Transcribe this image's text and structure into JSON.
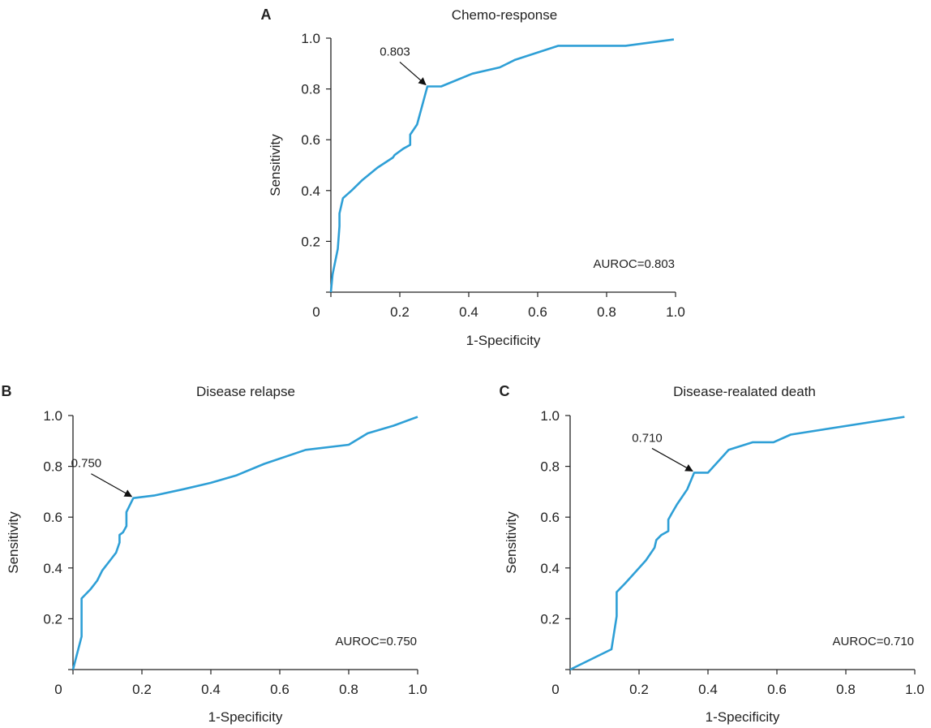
{
  "colors": {
    "curve": "#2e9fd6",
    "axis": "#222222",
    "arrow": "#111111"
  },
  "chart_data": [
    {
      "type": "line",
      "panel": "A",
      "title": "Chemo-response",
      "xlabel": "1-Specificity",
      "ylabel": "Sensitivity",
      "xlim": [
        0,
        1
      ],
      "ylim": [
        0,
        1
      ],
      "xticks": [
        "0",
        "0.2",
        "0.4",
        "0.6",
        "0.8",
        "1.0"
      ],
      "yticks": [
        "0.2",
        "0.4",
        "0.6",
        "0.8",
        "1.0"
      ],
      "grid": false,
      "annotation": {
        "text": "0.803",
        "x": 0.28,
        "y": 0.81
      },
      "auroc_label": "AUROC=0.803",
      "series": [
        {
          "x": [
            0,
            0.005,
            0.02,
            0.025,
            0.025,
            0.035,
            0.06,
            0.09,
            0.135,
            0.18,
            0.185,
            0.21,
            0.23,
            0.23,
            0.25,
            0.28,
            0.28,
            0.32,
            0.41,
            0.49,
            0.535,
            0.66,
            0.855,
            0.995
          ],
          "y": [
            0,
            0.07,
            0.17,
            0.26,
            0.31,
            0.37,
            0.4,
            0.44,
            0.49,
            0.53,
            0.54,
            0.565,
            0.58,
            0.62,
            0.66,
            0.81,
            0.81,
            0.81,
            0.86,
            0.885,
            0.915,
            0.97,
            0.97,
            0.995
          ]
        }
      ]
    },
    {
      "type": "line",
      "panel": "B",
      "title": "Disease relapse",
      "xlabel": "1-Specificity",
      "ylabel": "Sensitivity",
      "xlim": [
        0,
        1
      ],
      "ylim": [
        0,
        1
      ],
      "xticks": [
        "0",
        "0.2",
        "0.4",
        "0.6",
        "0.8",
        "1.0"
      ],
      "yticks": [
        "0.2",
        "0.4",
        "0.6",
        "0.8",
        "1.0"
      ],
      "grid": false,
      "annotation": {
        "text": "0.750",
        "x": 0.175,
        "y": 0.675
      },
      "auroc_label": "AUROC=0.750",
      "series": [
        {
          "x": [
            0,
            0.025,
            0.025,
            0.05,
            0.07,
            0.085,
            0.105,
            0.125,
            0.135,
            0.135,
            0.145,
            0.155,
            0.155,
            0.175,
            0.235,
            0.32,
            0.4,
            0.475,
            0.555,
            0.675,
            0.8,
            0.855,
            0.93,
            1.0
          ],
          "y": [
            0,
            0.13,
            0.28,
            0.315,
            0.35,
            0.39,
            0.425,
            0.46,
            0.5,
            0.53,
            0.54,
            0.565,
            0.62,
            0.675,
            0.685,
            0.71,
            0.735,
            0.765,
            0.81,
            0.865,
            0.885,
            0.93,
            0.96,
            0.995
          ]
        }
      ]
    },
    {
      "type": "line",
      "panel": "C",
      "title": "Disease-realated death",
      "xlabel": "1-Specificity",
      "ylabel": "Sensitivity",
      "xlim": [
        0,
        1
      ],
      "ylim": [
        0,
        1
      ],
      "xticks": [
        "0",
        "0.2",
        "0.4",
        "0.6",
        "0.8",
        "1.0"
      ],
      "yticks": [
        "0.2",
        "0.4",
        "0.6",
        "0.8",
        "1.0"
      ],
      "grid": false,
      "annotation": {
        "text": "0.710",
        "x": 0.36,
        "y": 0.775
      },
      "auroc_label": "AUROC=0.710",
      "series": [
        {
          "x": [
            0,
            0.12,
            0.135,
            0.135,
            0.16,
            0.18,
            0.22,
            0.245,
            0.25,
            0.265,
            0.285,
            0.285,
            0.295,
            0.31,
            0.34,
            0.36,
            0.36,
            0.4,
            0.46,
            0.53,
            0.59,
            0.64,
            0.97
          ],
          "y": [
            0,
            0.08,
            0.21,
            0.305,
            0.34,
            0.37,
            0.43,
            0.48,
            0.51,
            0.53,
            0.545,
            0.59,
            0.615,
            0.65,
            0.71,
            0.775,
            0.775,
            0.775,
            0.865,
            0.895,
            0.895,
            0.925,
            0.995
          ]
        }
      ]
    }
  ]
}
